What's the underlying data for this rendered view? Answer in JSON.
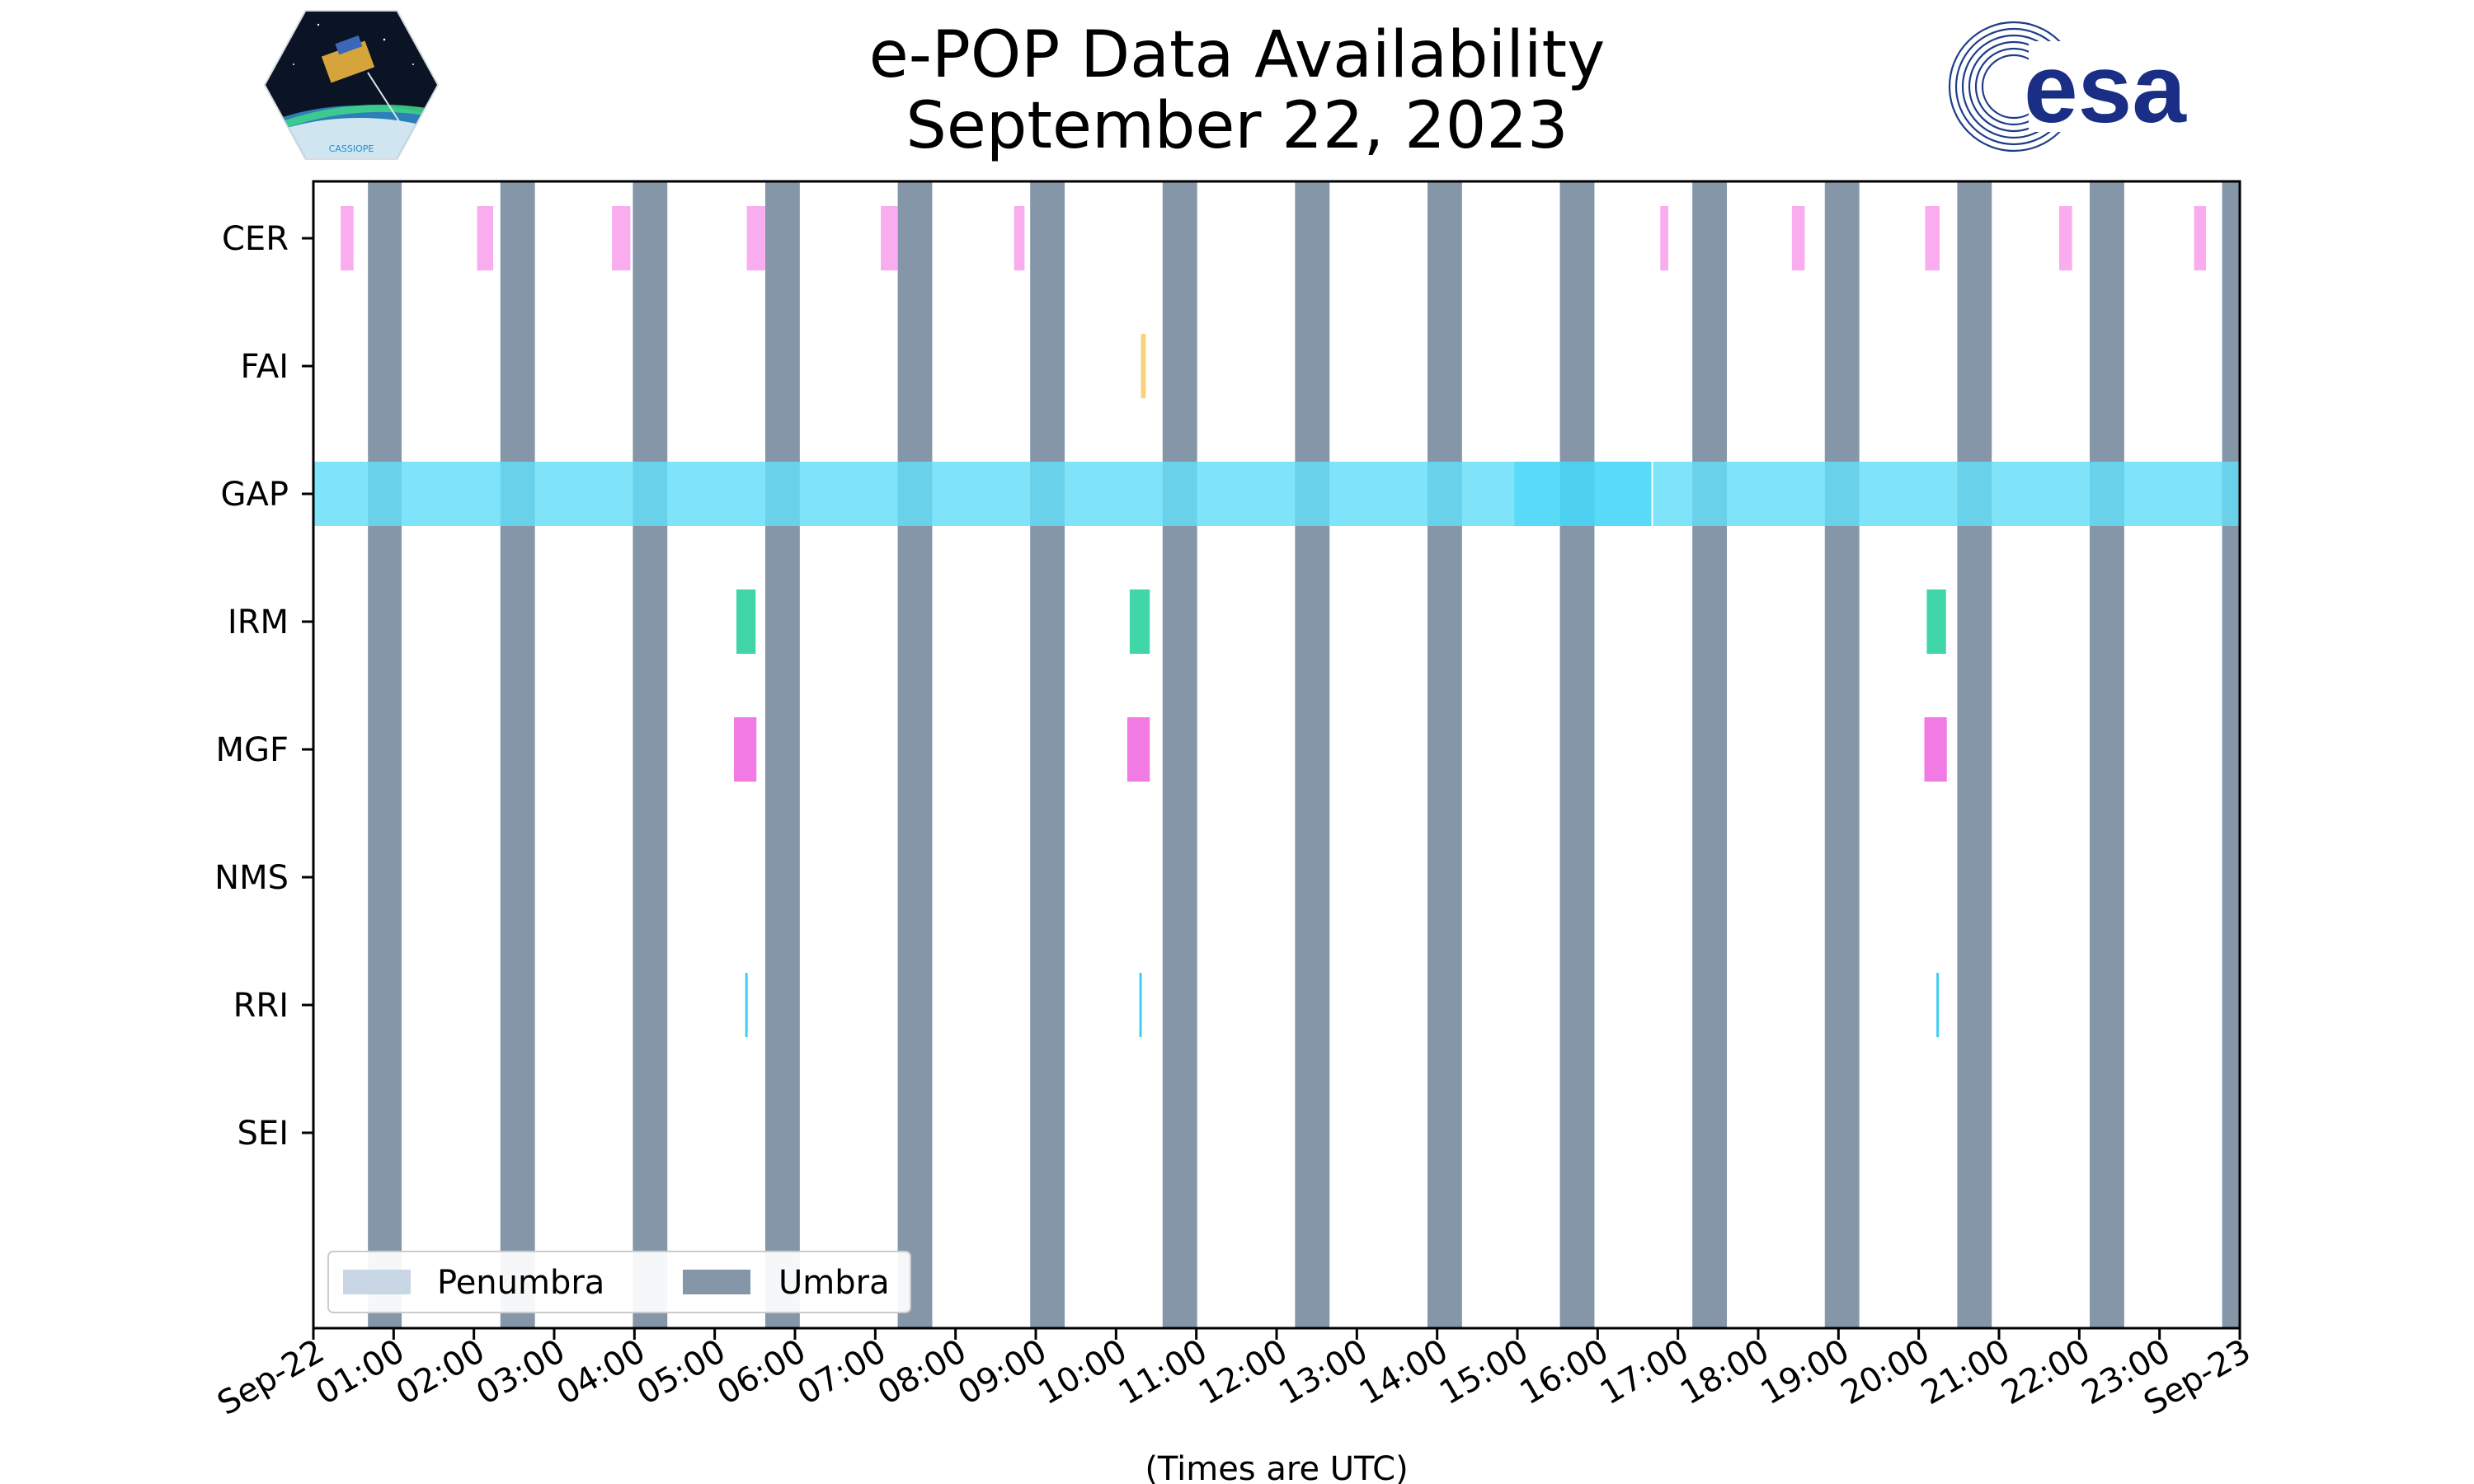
{
  "chart_data": {
    "type": "timeline",
    "title": "e-POP Data Availability",
    "subtitle": "September 22, 2023",
    "xlabel": "(Times are UTC)",
    "x_unit": "hours UTC",
    "xlim": [
      0,
      24
    ],
    "x_ticks": [
      {
        "t": 0,
        "label": "Sep-22"
      },
      {
        "t": 1,
        "label": "01:00"
      },
      {
        "t": 2,
        "label": "02:00"
      },
      {
        "t": 3,
        "label": "03:00"
      },
      {
        "t": 4,
        "label": "04:00"
      },
      {
        "t": 5,
        "label": "05:00"
      },
      {
        "t": 6,
        "label": "06:00"
      },
      {
        "t": 7,
        "label": "07:00"
      },
      {
        "t": 8,
        "label": "08:00"
      },
      {
        "t": 9,
        "label": "09:00"
      },
      {
        "t": 10,
        "label": "10:00"
      },
      {
        "t": 11,
        "label": "11:00"
      },
      {
        "t": 12,
        "label": "12:00"
      },
      {
        "t": 13,
        "label": "13:00"
      },
      {
        "t": 14,
        "label": "14:00"
      },
      {
        "t": 15,
        "label": "15:00"
      },
      {
        "t": 16,
        "label": "16:00"
      },
      {
        "t": 17,
        "label": "17:00"
      },
      {
        "t": 18,
        "label": "18:00"
      },
      {
        "t": 19,
        "label": "19:00"
      },
      {
        "t": 20,
        "label": "20:00"
      },
      {
        "t": 21,
        "label": "21:00"
      },
      {
        "t": 22,
        "label": "22:00"
      },
      {
        "t": 23,
        "label": "23:00"
      },
      {
        "t": 24,
        "label": "Sep-23"
      }
    ],
    "instruments": [
      "CER",
      "FAI",
      "GAP",
      "IRM",
      "MGF",
      "NMS",
      "RRI",
      "SEI"
    ],
    "colors": {
      "CER": "#f9a9ee",
      "FAI": "#f8d37a",
      "GAP": "#63def8",
      "GAP_dark": "#48d6f8",
      "IRM": "#41d6a8",
      "MGF": "#f17ae4",
      "RRI": "#41cef0",
      "umbra": "#8496a8",
      "penumbra": "#c8d6e6"
    },
    "umbra": [
      [
        0.68,
        1.1
      ],
      [
        2.33,
        2.76
      ],
      [
        3.98,
        4.41
      ],
      [
        5.63,
        6.06
      ],
      [
        7.28,
        7.71
      ],
      [
        8.93,
        9.36
      ],
      [
        10.58,
        11.01
      ],
      [
        12.23,
        12.66
      ],
      [
        13.88,
        14.31
      ],
      [
        15.53,
        15.96
      ],
      [
        17.18,
        17.61
      ],
      [
        18.83,
        19.26
      ],
      [
        20.48,
        20.91
      ],
      [
        22.13,
        22.56
      ],
      [
        23.78,
        24.0
      ]
    ],
    "series": [
      {
        "name": "CER",
        "intervals": [
          [
            0.34,
            0.5
          ],
          [
            2.04,
            2.24
          ],
          [
            3.72,
            3.95
          ],
          [
            5.4,
            5.63
          ],
          [
            7.07,
            7.28
          ],
          [
            8.73,
            8.86
          ],
          [
            16.78,
            16.88
          ],
          [
            18.42,
            18.58
          ],
          [
            20.08,
            20.26
          ],
          [
            21.75,
            21.91
          ],
          [
            23.43,
            23.58
          ]
        ]
      },
      {
        "name": "FAI",
        "intervals": [
          [
            10.31,
            10.37
          ]
        ]
      },
      {
        "name": "GAP",
        "intervals": [
          [
            0.0,
            14.96
          ],
          [
            14.96,
            16.67
          ],
          [
            16.69,
            24.0
          ]
        ]
      },
      {
        "name": "IRM",
        "intervals": [
          [
            5.27,
            5.51
          ],
          [
            10.17,
            10.42
          ],
          [
            20.1,
            20.34
          ]
        ]
      },
      {
        "name": "MGF",
        "intervals": [
          [
            5.24,
            5.52
          ],
          [
            10.14,
            10.42
          ],
          [
            20.07,
            20.35
          ]
        ]
      },
      {
        "name": "NMS",
        "intervals": []
      },
      {
        "name": "RRI",
        "intervals": [
          [
            5.38,
            5.41
          ],
          [
            10.29,
            10.32
          ],
          [
            20.22,
            20.25
          ]
        ]
      },
      {
        "name": "SEI",
        "intervals": []
      }
    ],
    "legend": {
      "position": "lower-left",
      "entries": [
        "Penumbra",
        "Umbra"
      ]
    }
  },
  "logos": {
    "left_text": "CASSIOPE",
    "right_text": "esa"
  }
}
